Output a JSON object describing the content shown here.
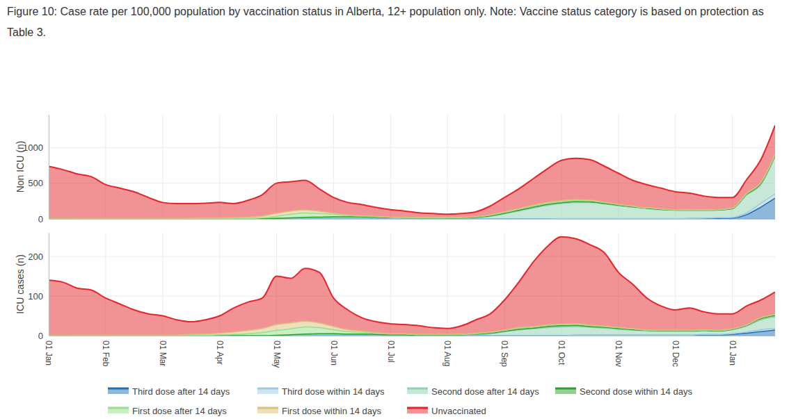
{
  "chart_data": [
    {
      "type": "area",
      "title": "Figure 10: Case rate per 100,000 population by vaccination status in Alberta, 12+ population only. Note: Vaccine status category is based on protection as Table 3.",
      "ylabel": "Non ICU (n)",
      "categories": [
        "01 Jan",
        null,
        null,
        null,
        "01 Feb",
        null,
        null,
        null,
        "01 Mar",
        null,
        null,
        null,
        "01 Apr",
        null,
        null,
        null,
        "01 May",
        null,
        null,
        null,
        "01 Jun",
        null,
        null,
        null,
        "01 Jul",
        null,
        null,
        null,
        "01 Aug",
        null,
        null,
        null,
        "01 Sep",
        null,
        null,
        null,
        "01 Oct",
        null,
        null,
        null,
        "01 Nov",
        null,
        null,
        null,
        "01 Dec",
        null,
        null,
        null,
        "01 Jan",
        null,
        null,
        null
      ],
      "series": [
        {
          "name": "Third dose after 14 days",
          "color": "#1f6fb4",
          "values": [
            0,
            0,
            0,
            0,
            0,
            0,
            0,
            0,
            0,
            0,
            0,
            0,
            0,
            0,
            0,
            0,
            0,
            0,
            0,
            0,
            0,
            0,
            0,
            0,
            0,
            0,
            0,
            0,
            0,
            0,
            0,
            0,
            0,
            0,
            0,
            0,
            2,
            3,
            3,
            3,
            3,
            3,
            3,
            3,
            3,
            4,
            5,
            8,
            10,
            60,
            165,
            290
          ]
        },
        {
          "name": "Third dose within 14 days",
          "color": "#9ecae1",
          "values": [
            0,
            0,
            0,
            0,
            0,
            0,
            0,
            0,
            0,
            0,
            0,
            0,
            0,
            0,
            0,
            0,
            0,
            0,
            0,
            0,
            0,
            0,
            0,
            0,
            0,
            0,
            0,
            0,
            0,
            0,
            0,
            0,
            0,
            0,
            0,
            0,
            1,
            1,
            1,
            1,
            1,
            1,
            1,
            1,
            2,
            3,
            5,
            8,
            10,
            25,
            55,
            60
          ]
        },
        {
          "name": "Second dose after 14 days",
          "color": "#8fd0b0",
          "values": [
            0,
            0,
            0,
            0,
            0,
            0,
            0,
            0,
            0,
            0,
            0,
            0,
            0,
            0,
            0,
            2,
            5,
            10,
            15,
            15,
            20,
            20,
            20,
            18,
            15,
            13,
            10,
            9,
            10,
            12,
            18,
            35,
            70,
            110,
            150,
            190,
            210,
            225,
            225,
            205,
            180,
            160,
            140,
            125,
            115,
            112,
            108,
            105,
            120,
            250,
            260,
            520
          ]
        },
        {
          "name": "Second dose within 14 days",
          "color": "#2ca02c",
          "values": [
            0,
            0,
            0,
            0,
            0,
            0,
            0,
            0,
            0,
            0,
            0,
            0,
            0,
            0,
            0,
            0,
            2,
            5,
            8,
            10,
            10,
            9,
            7,
            5,
            3,
            2,
            2,
            2,
            2,
            3,
            4,
            6,
            8,
            10,
            12,
            12,
            12,
            12,
            10,
            8,
            6,
            5,
            4,
            3,
            3,
            3,
            3,
            3,
            4,
            8,
            15,
            20
          ]
        },
        {
          "name": "First dose after 14 days",
          "color": "#98df8a",
          "values": [
            0,
            0,
            0,
            0,
            0,
            0,
            0,
            0,
            1,
            1,
            2,
            3,
            3,
            4,
            6,
            12,
            30,
            50,
            60,
            50,
            35,
            20,
            12,
            8,
            5,
            4,
            3,
            3,
            3,
            4,
            6,
            10,
            14,
            16,
            18,
            20,
            20,
            20,
            16,
            12,
            10,
            8,
            7,
            6,
            5,
            5,
            5,
            5,
            6,
            10,
            12,
            12
          ]
        },
        {
          "name": "First dose within 14 days",
          "color": "#dbbf7e",
          "values": [
            0,
            0,
            2,
            3,
            3,
            3,
            2,
            2,
            3,
            4,
            6,
            8,
            10,
            12,
            15,
            25,
            40,
            45,
            40,
            30,
            15,
            8,
            5,
            3,
            2,
            2,
            2,
            2,
            2,
            3,
            4,
            6,
            7,
            8,
            10,
            10,
            10,
            9,
            7,
            5,
            3,
            2,
            2,
            2,
            2,
            2,
            2,
            2,
            2,
            3,
            3,
            3
          ]
        },
        {
          "name": "Unvaccinated",
          "color": "#e3262b",
          "values": [
            735,
            690,
            628,
            587,
            477,
            427,
            378,
            298,
            226,
            210,
            207,
            209,
            217,
            199,
            239,
            301,
            423,
            410,
            417,
            315,
            220,
            173,
            156,
            126,
            105,
            89,
            68,
            59,
            48,
            53,
            68,
            123,
            201,
            276,
            370,
            468,
            565,
            580,
            568,
            506,
            437,
            361,
            323,
            290,
            250,
            231,
            192,
            169,
            148,
            194,
            320,
            405
          ]
        }
      ],
      "ylim": [
        0,
        1460
      ],
      "yticks": [
        0,
        500,
        1000
      ],
      "grid": true,
      "stacked": true,
      "legend": "bottom",
      "tick_labels": "y"
    },
    {
      "type": "area",
      "ylabel": "ICU cases (n)",
      "categories": [
        "01 Jan",
        null,
        null,
        null,
        "01 Feb",
        null,
        null,
        null,
        "01 Mar",
        null,
        null,
        null,
        "01 Apr",
        null,
        null,
        null,
        "01 May",
        null,
        null,
        null,
        "01 Jun",
        null,
        null,
        null,
        "01 Jul",
        null,
        null,
        null,
        "01 Aug",
        null,
        null,
        null,
        "01 Sep",
        null,
        null,
        null,
        "01 Oct",
        null,
        null,
        null,
        "01 Nov",
        null,
        null,
        null,
        "01 Dec",
        null,
        null,
        null,
        "01 Jan",
        null,
        null,
        null
      ],
      "series": [
        {
          "color": "#1f6fb4",
          "values": [
            0,
            0,
            0,
            0,
            0,
            0,
            0,
            0,
            0,
            0,
            0,
            0,
            0,
            0,
            0,
            0,
            0,
            0,
            0,
            0,
            0,
            0,
            0,
            0,
            0,
            0,
            0,
            0,
            0,
            0,
            0,
            0,
            0,
            0,
            0,
            0,
            0,
            1,
            1,
            1,
            1,
            1,
            1,
            1,
            1,
            1,
            2,
            2,
            3,
            6,
            10,
            14
          ]
        },
        {
          "color": "#9ecae1",
          "values": [
            0,
            0,
            0,
            0,
            0,
            0,
            0,
            0,
            0,
            0,
            0,
            0,
            0,
            0,
            0,
            0,
            0,
            0,
            0,
            0,
            0,
            0,
            0,
            0,
            0,
            0,
            0,
            0,
            0,
            0,
            0,
            0,
            0,
            0,
            0,
            0,
            0,
            0,
            0,
            0,
            0,
            0,
            0,
            0,
            0,
            0,
            1,
            1,
            2,
            3,
            5,
            4
          ]
        },
        {
          "color": "#8fd0b0",
          "values": [
            0,
            0,
            0,
            0,
            0,
            0,
            0,
            0,
            0,
            0,
            0,
            0,
            0,
            0,
            0,
            0,
            0,
            1,
            2,
            3,
            3,
            3,
            3,
            2,
            2,
            2,
            1,
            1,
            1,
            2,
            3,
            5,
            10,
            14,
            17,
            20,
            22,
            22,
            20,
            18,
            15,
            13,
            11,
            10,
            10,
            10,
            9,
            8,
            10,
            15,
            25,
            30
          ]
        },
        {
          "color": "#2ca02c",
          "values": [
            0,
            0,
            0,
            0,
            0,
            0,
            0,
            0,
            0,
            0,
            0,
            0,
            0,
            0,
            0,
            0,
            1,
            1,
            2,
            2,
            2,
            1,
            1,
            1,
            0,
            0,
            0,
            0,
            0,
            0,
            1,
            1,
            1,
            2,
            2,
            3,
            3,
            3,
            2,
            2,
            2,
            1,
            1,
            1,
            1,
            1,
            1,
            1,
            1,
            2,
            3,
            3
          ]
        },
        {
          "color": "#98df8a",
          "values": [
            0,
            0,
            0,
            0,
            0,
            0,
            0,
            0,
            0,
            0,
            1,
            1,
            2,
            3,
            5,
            8,
            12,
            15,
            18,
            15,
            10,
            6,
            4,
            3,
            2,
            2,
            1,
            1,
            1,
            1,
            1,
            2,
            2,
            3,
            3,
            3,
            3,
            3,
            3,
            2,
            2,
            2,
            1,
            1,
            1,
            1,
            1,
            1,
            1,
            1,
            2,
            2
          ]
        },
        {
          "color": "#dbbf7e",
          "values": [
            0,
            0,
            1,
            1,
            1,
            1,
            1,
            1,
            1,
            1,
            2,
            3,
            4,
            6,
            8,
            10,
            15,
            15,
            14,
            12,
            8,
            5,
            3,
            2,
            1,
            1,
            1,
            1,
            1,
            1,
            1,
            1,
            1,
            1,
            1,
            1,
            1,
            1,
            1,
            1,
            1,
            0,
            0,
            0,
            0,
            0,
            0,
            0,
            0,
            0,
            0,
            0
          ]
        },
        {
          "color": "#e3262b",
          "values": [
            140,
            135,
            119,
            114,
            94,
            79,
            64,
            54,
            49,
            39,
            32,
            36,
            44,
            61,
            72,
            77,
            122,
            113,
            134,
            128,
            72,
            50,
            34,
            27,
            25,
            23,
            22,
            17,
            15,
            21,
            34,
            46,
            76,
            115,
            162,
            198,
            221,
            215,
            203,
            186,
            139,
            113,
            81,
            62,
            52,
            57,
            46,
            42,
            38,
            48,
            45,
            57
          ]
        }
      ],
      "ylim": [
        0,
        260
      ],
      "yticks": [
        0,
        100,
        200
      ],
      "grid": true,
      "stacked": true
    }
  ]
}
